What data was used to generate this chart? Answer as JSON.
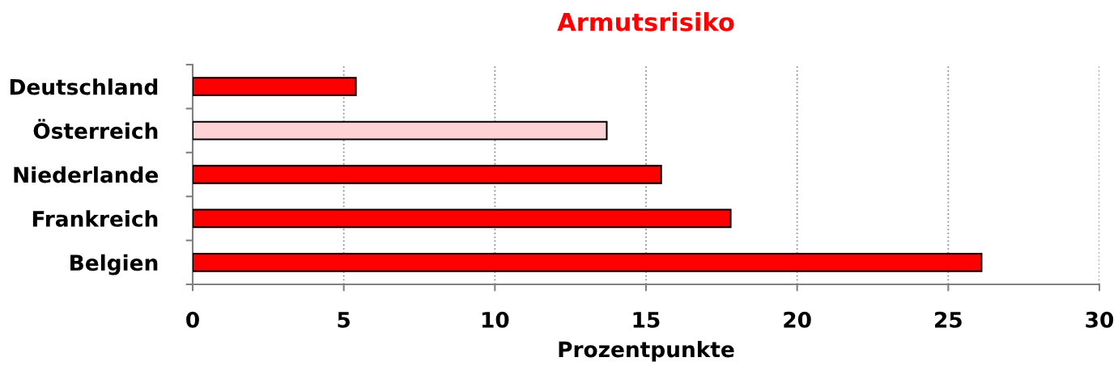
{
  "chart_data": {
    "type": "bar",
    "orientation": "horizontal",
    "title": "Armutsrisiko",
    "xlabel": "Prozentpunkte",
    "categories": [
      "Deutschland",
      "Österreich",
      "Niederlande",
      "Frankreich",
      "Belgien"
    ],
    "values": [
      5.4,
      13.7,
      15.5,
      17.8,
      26.1
    ],
    "colors": [
      "#ff0000",
      "#ffd3d6",
      "#ff0000",
      "#ff0000",
      "#ff0000"
    ],
    "xlim": [
      0,
      30
    ],
    "xticks": [
      0,
      5,
      10,
      15,
      20,
      25,
      30
    ],
    "grid": "x"
  }
}
